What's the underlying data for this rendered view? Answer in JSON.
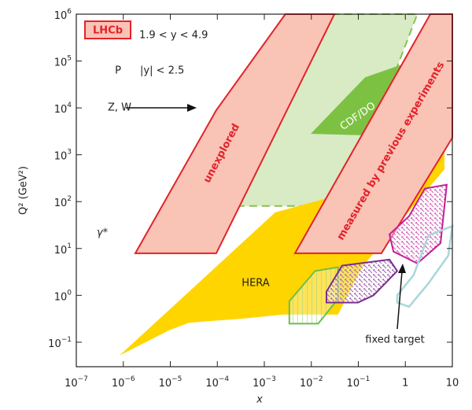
{
  "chart_data": {
    "type": "polygon",
    "xlabel": "x",
    "ylabel": "Q² (GeV²)",
    "xscale": "log",
    "yscale": "log",
    "xlim": [
      1e-07,
      10
    ],
    "ylim": [
      0.03,
      1000000
    ],
    "xticks": [
      {
        "value": 1e-07,
        "label": "10",
        "exponent": "−7"
      },
      {
        "value": 1e-06,
        "label": "10",
        "exponent": "−6"
      },
      {
        "value": 1e-05,
        "label": "10",
        "exponent": "−5"
      },
      {
        "value": 0.0001,
        "label": "10",
        "exponent": "−4"
      },
      {
        "value": 0.001,
        "label": "10",
        "exponent": "−3"
      },
      {
        "value": 0.01,
        "label": "10",
        "exponent": "−2"
      },
      {
        "value": 0.1,
        "label": "10",
        "exponent": "−1"
      },
      1,
      10
    ],
    "yticks": [
      {
        "value": 0.1,
        "label": "10",
        "exponent": "−1"
      },
      {
        "value": 1,
        "label": "10",
        "exponent": "0"
      },
      {
        "value": 10,
        "label": "10",
        "exponent": "1"
      },
      {
        "value": 100,
        "label": "10",
        "exponent": "2"
      },
      {
        "value": 1000,
        "label": "10",
        "exponent": "3"
      },
      {
        "value": 10000,
        "label": "10",
        "exponent": "4"
      },
      {
        "value": 100000,
        "label": "10",
        "exponent": "5"
      },
      {
        "value": 1000000,
        "label": "10",
        "exponent": "6"
      }
    ],
    "series": [
      {
        "color": "#d8ebc4",
        "edge_color": "#8cc152",
        "dashed": true,
        "fill": "solid",
        "x": [
          0.00015,
          0.005,
          1.8,
          0.049
        ],
        "y": [
          81,
          1000000,
          1000000,
          81
        ]
      },
      {
        "name": "CDF/DO",
        "color": "#7dc142",
        "fill": "solid",
        "x": [
          0.0097,
          0.14,
          10,
          10
        ],
        "y": [
          2800,
          45000,
          200000,
          2300
        ]
      },
      {
        "name": "HERA",
        "color": "#ffd500",
        "fill": "solid",
        "x": [
          8.3e-07,
          2.5e-05,
          0.0017,
          0.12,
          6.8,
          6.8,
          0.12,
          0.037,
          0.0025,
          0.00037,
          2.5e-05,
          9.4e-06
        ],
        "y": [
          0.052,
          1.2,
          59,
          190,
          2300,
          490,
          4.0,
          0.39,
          0.39,
          0.32,
          0.26,
          0.18
        ]
      },
      {
        "name": "unexplored",
        "color": "#f9c3b6",
        "edge_color": "#e2232a",
        "fill": "solid",
        "x": [
          1.8e-06,
          9.5e-05,
          0.0028,
          0.031,
          9.5e-05
        ],
        "y": [
          7.9,
          8900,
          1000000,
          1000000,
          7.9
        ]
      },
      {
        "name": "measured by previous experiments",
        "color": "#f9c3b6",
        "edge_color": "#e2232a",
        "fill": "solid",
        "x": [
          0.0045,
          3.4,
          10,
          10,
          0.31
        ],
        "y": [
          7.9,
          1000000,
          1000000,
          2300,
          7.9
        ]
      },
      {
        "color": "#6dbf4b",
        "fill": "hatch",
        "x": [
          0.0034,
          0.012,
          0.037,
          0.037,
          0.014,
          0.0034
        ],
        "y": [
          0.75,
          3.3,
          4.0,
          0.84,
          0.25,
          0.25
        ]
      },
      {
        "color": "#7b2d8e",
        "fill": "crosshatch",
        "x": [
          0.021,
          0.045,
          0.46,
          0.67,
          0.21,
          0.098,
          0.021
        ],
        "y": [
          1.2,
          4.3,
          5.8,
          3.3,
          1.0,
          0.7,
          0.7
        ]
      },
      {
        "color": "#c0209a",
        "fill": "crosshatch",
        "x": [
          0.46,
          1.2,
          2.6,
          7.6,
          5.6,
          1.8,
          0.56
        ],
        "y": [
          20,
          49,
          190,
          230,
          13,
          4.8,
          8.6
        ]
      },
      {
        "color": "#a8d8d8",
        "fill": "none",
        "x": [
          0.67,
          1.5,
          3.1,
          10,
          8.2,
          3.1,
          1.2,
          0.67
        ],
        "y": [
          1.0,
          2.7,
          19,
          30,
          7.1,
          1.8,
          0.57,
          0.7
        ]
      }
    ],
    "annotations": [
      "LHCb",
      "1.9 < y < 4.9",
      "P",
      "|y| < 2.5",
      "Z, W",
      "γ*",
      "fixed target"
    ]
  }
}
